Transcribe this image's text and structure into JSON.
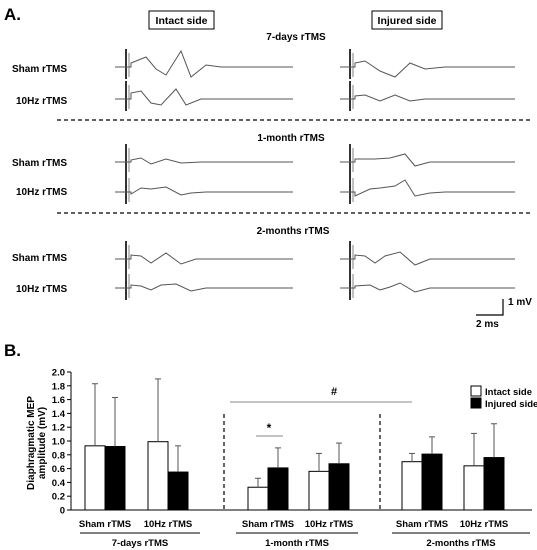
{
  "panel_a": {
    "label": "A.",
    "columns": [
      "Intact side",
      "Injured side"
    ],
    "groups": [
      {
        "title": "7-days rTMS",
        "rows": [
          "Sham rTMS",
          "10Hz rTMS"
        ]
      },
      {
        "title": "1-month rTMS",
        "rows": [
          "Sham rTMS",
          "10Hz rTMS"
        ]
      },
      {
        "title": "2-months rTMS",
        "rows": [
          "Sham rTMS",
          "10Hz rTMS"
        ]
      }
    ],
    "scale_bar": {
      "vertical": "1 mV",
      "horizontal": "2 ms"
    }
  },
  "panel_b": {
    "label": "B.",
    "significance": {
      "hash": "#",
      "star": "*"
    }
  },
  "colors": {
    "intact": "#ffffff",
    "injured": "#000000",
    "trace": "#555555"
  },
  "chart_data": {
    "type": "bar",
    "ylabel": "Diaphragmatic MEP amplitude (mV)",
    "ylim": [
      0,
      2.0
    ],
    "yticks": [
      "0",
      "0.2",
      "0.4",
      "0.6",
      "0.8",
      "1.0",
      "1.2",
      "1.4",
      "1.6",
      "1.8",
      "2.0"
    ],
    "categories": [
      "Sham rTMS",
      "10Hz rTMS",
      "Sham rTMS",
      "10Hz rTMS",
      "Sham rTMS",
      "10Hz rTMS"
    ],
    "groups": [
      "7-days rTMS",
      "1-month rTMS",
      "2-months rTMS"
    ],
    "series": [
      {
        "name": "Intact side",
        "values": [
          0.93,
          0.99,
          0.33,
          0.56,
          0.7,
          0.64
        ],
        "errors": [
          0.9,
          0.91,
          0.13,
          0.26,
          0.12,
          0.47
        ]
      },
      {
        "name": "Injured side",
        "values": [
          0.92,
          0.55,
          0.61,
          0.67,
          0.81,
          0.76
        ],
        "errors": [
          0.71,
          0.38,
          0.29,
          0.3,
          0.25,
          0.49
        ]
      }
    ],
    "legend_position": "top-right",
    "grid": false
  }
}
